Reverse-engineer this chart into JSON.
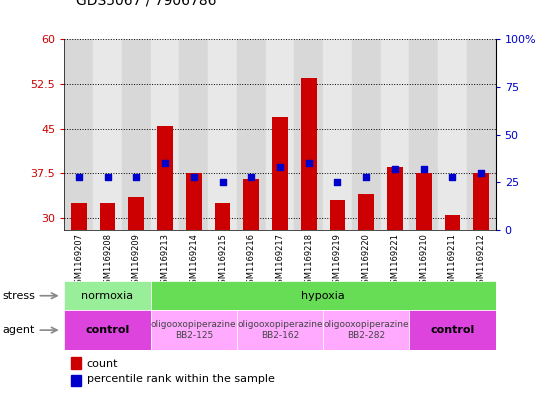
{
  "title": "GDS5067 / 7906786",
  "samples": [
    "GSM1169207",
    "GSM1169208",
    "GSM1169209",
    "GSM1169213",
    "GSM1169214",
    "GSM1169215",
    "GSM1169216",
    "GSM1169217",
    "GSM1169218",
    "GSM1169219",
    "GSM1169220",
    "GSM1169221",
    "GSM1169210",
    "GSM1169211",
    "GSM1169212"
  ],
  "counts": [
    32.5,
    32.5,
    33.5,
    45.5,
    37.5,
    32.5,
    36.5,
    47.0,
    53.5,
    33.0,
    34.0,
    38.5,
    37.5,
    30.5,
    37.5
  ],
  "percentiles": [
    28,
    28,
    28,
    35,
    28,
    25,
    28,
    33,
    35,
    25,
    28,
    32,
    32,
    28,
    30
  ],
  "ylim_left": [
    28,
    60
  ],
  "ylim_right": [
    0,
    100
  ],
  "yticks_left": [
    30,
    37.5,
    45,
    52.5,
    60
  ],
  "yticks_right": [
    0,
    25,
    50,
    75,
    100
  ],
  "ytick_labels_left": [
    "30",
    "37.5",
    "45",
    "52.5",
    "60"
  ],
  "ytick_labels_right": [
    "0",
    "25",
    "50",
    "75",
    "100%"
  ],
  "bar_color": "#cc0000",
  "dot_color": "#0000cc",
  "bar_bottom": 28,
  "stress_groups": [
    {
      "label": "normoxia",
      "start": 0,
      "end": 3,
      "color": "#99ee99"
    },
    {
      "label": "hypoxia",
      "start": 3,
      "end": 15,
      "color": "#66dd55"
    }
  ],
  "agent_groups": [
    {
      "label": "control",
      "start": 0,
      "end": 3,
      "color": "#dd44dd"
    },
    {
      "label": "oligooxopiperazine\nBB2-125",
      "start": 3,
      "end": 6,
      "color": "#ffaaff"
    },
    {
      "label": "oligooxopiperazine\nBB2-162",
      "start": 6,
      "end": 9,
      "color": "#ffaaff"
    },
    {
      "label": "oligooxopiperazine\nBB2-282",
      "start": 9,
      "end": 12,
      "color": "#ffaaff"
    },
    {
      "label": "control",
      "start": 12,
      "end": 15,
      "color": "#dd44dd"
    }
  ],
  "legend_count_label": "count",
  "legend_pct_label": "percentile rank within the sample",
  "tick_color_left": "#cc0000",
  "tick_color_right": "#0000cc",
  "col_colors": [
    "#d8d8d8",
    "#e8e8e8"
  ]
}
